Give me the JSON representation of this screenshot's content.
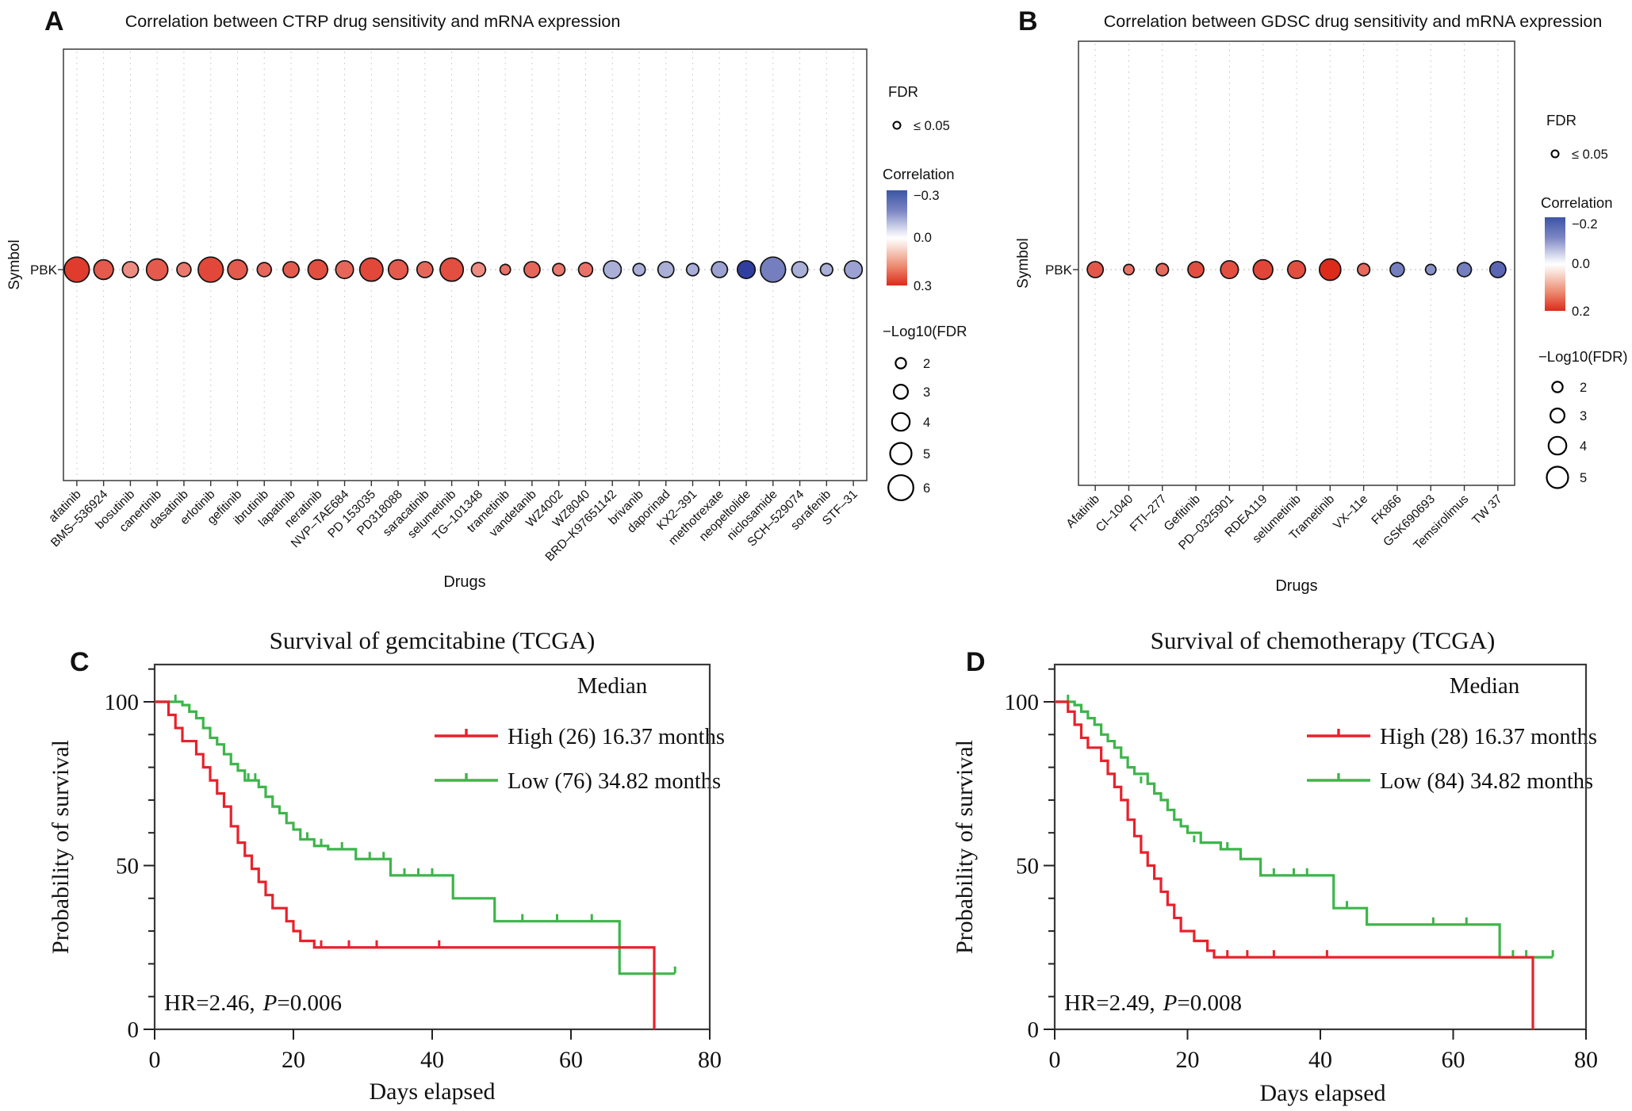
{
  "chart_data": [
    {
      "panel_label": "A",
      "type": "scatter",
      "title": "Correlation between CTRP drug sensitivity and mRNA expression",
      "xlabel": "Drugs",
      "ylabel": "Symbol",
      "row_label": "PBK",
      "fdr_legend_title": "FDR",
      "fdr_legend_item": "≤ 0.05",
      "corr_legend_title": "Correlation",
      "corr_scale_ticks": [
        "−0.3",
        "0.0",
        "0.3"
      ],
      "corr_scale_max": 0.3,
      "corr_scale_colors": {
        "negative": "#2F3E9F",
        "zero": "#FFFFFF",
        "positive": "#DC2B1B"
      },
      "size_legend_title": "−Log10(FDR",
      "size_legend_values": [
        2,
        3,
        4,
        5,
        6
      ],
      "drugs": [
        "afatinib",
        "BMS–536924",
        "bosutinib",
        "canertinib",
        "dasatinib",
        "erlotinib",
        "gefitinib",
        "ibrutinib",
        "lapatinib",
        "neratinib",
        "NVP–TAE684",
        "PD 153035",
        "PD318088",
        "saracatinib",
        "selumetinib",
        "TG–101348",
        "trametinib",
        "vandetanib",
        "WZ4002",
        "WZ8040",
        "BRD–K97651142",
        "brivanib",
        "daporinad",
        "KX2–391",
        "methotrexate",
        "neopeltolide",
        "niclosamide",
        "SCH–529074",
        "sorafenib",
        "STF–31"
      ],
      "correlation": [
        0.27,
        0.22,
        0.14,
        0.22,
        0.17,
        0.25,
        0.22,
        0.2,
        0.22,
        0.24,
        0.2,
        0.25,
        0.22,
        0.2,
        0.24,
        0.14,
        0.18,
        0.2,
        0.17,
        0.18,
        -0.1,
        -0.1,
        -0.1,
        -0.1,
        -0.12,
        -0.3,
        -0.18,
        -0.1,
        -0.1,
        -0.12
      ],
      "neglog10_fdr": [
        6,
        4.5,
        3.5,
        5,
        3,
        6,
        4.5,
        3,
        3.5,
        4.5,
        4,
        5.5,
        4.5,
        3.5,
        5.5,
        3,
        2,
        3.5,
        2.5,
        3,
        4,
        2.5,
        3.5,
        2.5,
        3.5,
        4,
        6,
        3.5,
        2.5,
        4
      ]
    },
    {
      "panel_label": "B",
      "type": "scatter",
      "title": "Correlation between GDSC drug sensitivity and mRNA expression",
      "xlabel": "Drugs",
      "ylabel": "Symbol",
      "row_label": "PBK",
      "fdr_legend_title": "FDR",
      "fdr_legend_item": "≤ 0.05",
      "corr_legend_title": "Correlation",
      "corr_scale_ticks": [
        "−0.2",
        "0.0",
        "0.2"
      ],
      "corr_scale_max": 0.2,
      "corr_scale_colors": {
        "negative": "#2F3E9F",
        "zero": "#FFFFFF",
        "positive": "#DC2B1B"
      },
      "size_legend_title": "−Log10(FDR)",
      "size_legend_values": [
        2,
        3,
        4,
        5
      ],
      "drugs": [
        "Afatinib",
        "CI–1040",
        "FTI–277",
        "Gefitinib",
        "PD–0325901",
        "RDEA119",
        "selumetinib",
        "Trametinib",
        "VX–11e",
        "FK866",
        "GSK690693",
        "Temsirolimus",
        "TW 37"
      ],
      "correlation": [
        0.15,
        0.12,
        0.13,
        0.16,
        0.16,
        0.17,
        0.16,
        0.2,
        0.13,
        -0.12,
        -0.1,
        -0.12,
        -0.15
      ],
      "neglog10_fdr": [
        3.5,
        2,
        2.5,
        3.5,
        4,
        4.5,
        4,
        5,
        2.5,
        3,
        2,
        3,
        3.5
      ]
    },
    {
      "panel_label": "C",
      "type": "line",
      "title": "Survival of gemcitabine (TCGA)",
      "xlabel": "Days elapsed",
      "ylabel": "Probability of survival",
      "xticks": [
        0,
        20,
        40,
        60,
        80
      ],
      "yticks": [
        0,
        50,
        100
      ],
      "xlim": [
        0,
        80
      ],
      "ylim": [
        0,
        100
      ],
      "legend_title": "Median",
      "stats": {
        "hr": "HR=2.46,",
        "p_italic": "P",
        "p_rest": "=0.006"
      },
      "series": [
        {
          "name": "High",
          "label": "High (26) 16.37 months",
          "color": "#E8212B",
          "start": [
            0,
            100
          ],
          "end_x": 72,
          "drops": [
            [
              2,
              96
            ],
            [
              3,
              92
            ],
            [
              4,
              88
            ],
            [
              6,
              84
            ],
            [
              7,
              80
            ],
            [
              8,
              76
            ],
            [
              9,
              72
            ],
            [
              10,
              68
            ],
            [
              11,
              62
            ],
            [
              12,
              57
            ],
            [
              13,
              53
            ],
            [
              14,
              49
            ],
            [
              15,
              45
            ],
            [
              16,
              41
            ],
            [
              17,
              37
            ],
            [
              19,
              33
            ],
            [
              20,
              30
            ],
            [
              21,
              27
            ],
            [
              23,
              25
            ],
            [
              72,
              0
            ]
          ],
          "censors": [
            [
              24,
              25
            ],
            [
              28,
              25
            ],
            [
              32,
              25
            ],
            [
              41,
              25
            ]
          ]
        },
        {
          "name": "Low",
          "label": "Low (76) 34.82 months",
          "color": "#3DB54A",
          "start": [
            0,
            100
          ],
          "end_x": 75,
          "drops": [
            [
              4,
              99
            ],
            [
              5,
              97
            ],
            [
              6,
              95
            ],
            [
              7,
              92
            ],
            [
              8,
              89
            ],
            [
              9,
              87
            ],
            [
              10,
              84
            ],
            [
              11,
              81
            ],
            [
              12,
              79
            ],
            [
              13,
              76
            ],
            [
              15,
              74
            ],
            [
              16,
              71
            ],
            [
              17,
              68
            ],
            [
              18,
              66
            ],
            [
              19,
              63
            ],
            [
              20,
              61
            ],
            [
              21,
              58
            ],
            [
              23,
              56
            ],
            [
              25,
              55
            ],
            [
              29,
              52
            ],
            [
              34,
              47
            ],
            [
              43,
              40
            ],
            [
              49,
              33
            ],
            [
              67,
              17
            ]
          ],
          "censors": [
            [
              3,
              100
            ],
            [
              13.5,
              76
            ],
            [
              14.5,
              76
            ],
            [
              22,
              58
            ],
            [
              24,
              56
            ],
            [
              27,
              55
            ],
            [
              31,
              52
            ],
            [
              33,
              52
            ],
            [
              36,
              47
            ],
            [
              38,
              47
            ],
            [
              40,
              47
            ],
            [
              53,
              33
            ],
            [
              58,
              33
            ],
            [
              63,
              33
            ],
            [
              75,
              17
            ]
          ]
        }
      ]
    },
    {
      "panel_label": "D",
      "type": "line",
      "title": "Survival of chemotherapy (TCGA)",
      "xlabel": "Days elapsed",
      "ylabel": "Probability of survival",
      "xticks": [
        0,
        20,
        40,
        60,
        80
      ],
      "yticks": [
        0,
        50,
        100
      ],
      "xlim": [
        0,
        80
      ],
      "ylim": [
        0,
        100
      ],
      "legend_title": "Median",
      "stats": {
        "hr": "HR=2.49,",
        "p_italic": "P",
        "p_rest": "=0.008"
      },
      "series": [
        {
          "name": "High",
          "label": "High (28) 16.37 months",
          "color": "#E8212B",
          "start": [
            0,
            100
          ],
          "end_x": 72,
          "drops": [
            [
              2,
              97
            ],
            [
              3,
              93
            ],
            [
              4,
              89
            ],
            [
              5,
              86
            ],
            [
              7,
              82
            ],
            [
              8,
              78
            ],
            [
              9,
              74
            ],
            [
              10,
              70
            ],
            [
              11,
              64
            ],
            [
              12,
              59
            ],
            [
              13,
              54
            ],
            [
              14,
              50
            ],
            [
              15,
              46
            ],
            [
              16,
              42
            ],
            [
              17,
              38
            ],
            [
              18,
              34
            ],
            [
              19,
              30
            ],
            [
              21,
              27
            ],
            [
              23,
              24
            ],
            [
              24,
              22
            ],
            [
              72,
              0
            ]
          ],
          "censors": [
            [
              26,
              22
            ],
            [
              29,
              22
            ],
            [
              33,
              22
            ],
            [
              41,
              22
            ]
          ]
        },
        {
          "name": "Low",
          "label": "Low (84) 34.82 months",
          "color": "#3DB54A",
          "start": [
            0,
            100
          ],
          "end_x": 75,
          "drops": [
            [
              3,
              99
            ],
            [
              4,
              97
            ],
            [
              5,
              95
            ],
            [
              6,
              93
            ],
            [
              7,
              90
            ],
            [
              8,
              88
            ],
            [
              9,
              86
            ],
            [
              10,
              83
            ],
            [
              11,
              80
            ],
            [
              12,
              78
            ],
            [
              14,
              75
            ],
            [
              15,
              72
            ],
            [
              16,
              70
            ],
            [
              17,
              67
            ],
            [
              18,
              64
            ],
            [
              19,
              62
            ],
            [
              20,
              60
            ],
            [
              22,
              57
            ],
            [
              25,
              55
            ],
            [
              28,
              52
            ],
            [
              31,
              47
            ],
            [
              42,
              37
            ],
            [
              47,
              32
            ],
            [
              67,
              22
            ]
          ],
          "censors": [
            [
              2,
              100
            ],
            [
              13,
              75
            ],
            [
              21,
              57
            ],
            [
              26,
              55
            ],
            [
              33,
              47
            ],
            [
              36,
              47
            ],
            [
              38,
              47
            ],
            [
              44,
              37
            ],
            [
              57,
              32
            ],
            [
              62,
              32
            ],
            [
              69,
              22
            ],
            [
              71,
              22
            ],
            [
              75,
              22
            ]
          ]
        }
      ]
    }
  ]
}
